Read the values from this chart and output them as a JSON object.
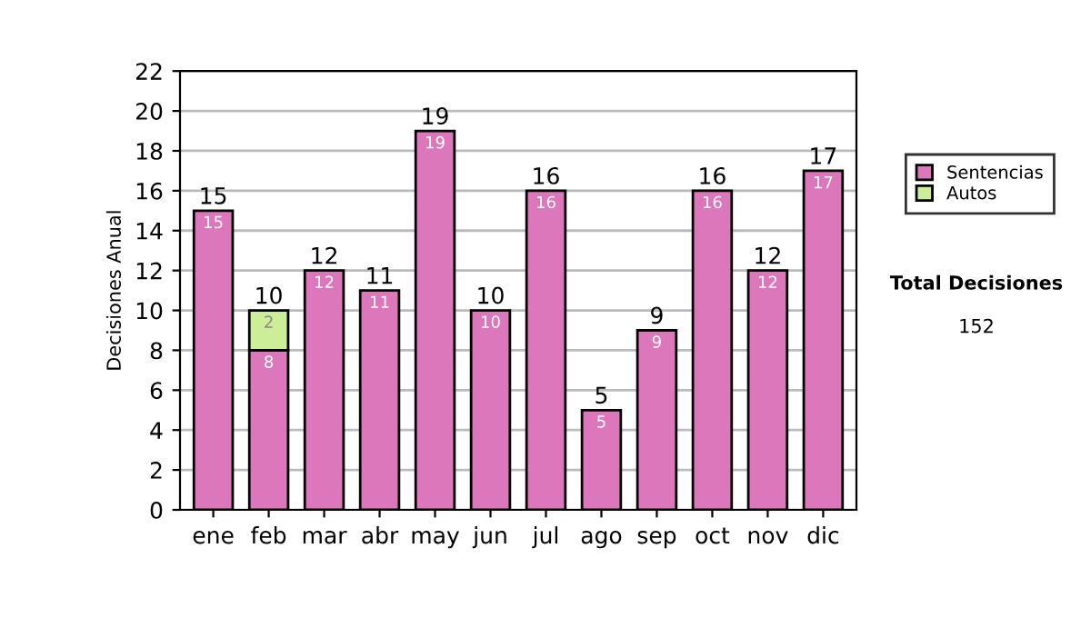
{
  "chart_data": {
    "type": "bar",
    "stacked": true,
    "ylabel": "Decisiones Anual",
    "categories": [
      "ene",
      "feb",
      "mar",
      "abr",
      "may",
      "jun",
      "jul",
      "ago",
      "sep",
      "oct",
      "nov",
      "dic"
    ],
    "series": [
      {
        "name": "Sentencias",
        "color": "#dd77bb",
        "values": [
          15,
          8,
          12,
          11,
          19,
          10,
          16,
          5,
          9,
          16,
          12,
          17
        ]
      },
      {
        "name": "Autos",
        "color": "#ccee99",
        "values": [
          null,
          2,
          null,
          null,
          null,
          null,
          null,
          null,
          null,
          null,
          null,
          null
        ]
      }
    ],
    "totals": [
      "15",
      "10",
      "12",
      "11",
      "19",
      "10",
      "16",
      "5",
      "9",
      "16",
      "12",
      "17"
    ],
    "data_labels": true,
    "ylim": [
      0,
      22
    ],
    "yticks": [
      0,
      2,
      4,
      6,
      8,
      10,
      12,
      14,
      16,
      18,
      20,
      22
    ],
    "grid": "y",
    "legend": "right",
    "annotations": [
      "Total Decisiones",
      "152"
    ]
  }
}
